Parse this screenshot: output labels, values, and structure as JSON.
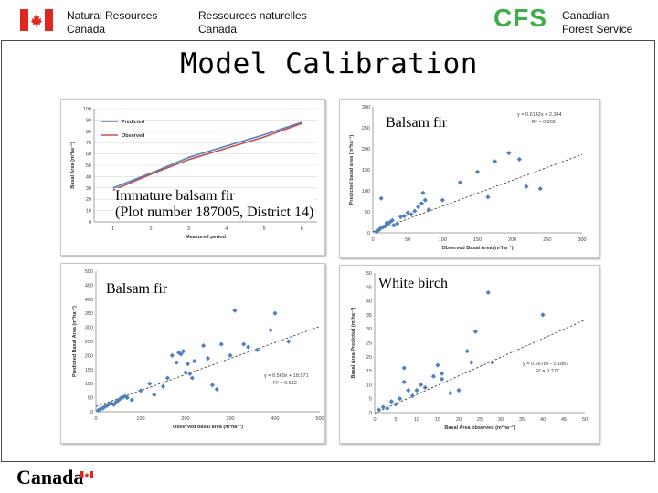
{
  "header": {
    "nrcan_en": [
      "Natural Resources",
      "Canada"
    ],
    "nrcan_fr": [
      "Ressources naturelles",
      "Canada"
    ],
    "cfs_abbrev": "CFS",
    "cfs_name": [
      "Canadian",
      "Forest Service"
    ],
    "accent_red": "#e0261f",
    "accent_green": "#3fae49"
  },
  "slide": {
    "title": "Model Calibration"
  },
  "footer": {
    "wordmark": "Canada"
  },
  "chart_data": [
    {
      "type": "line",
      "label": [
        "Immature balsam fir",
        "(Plot number 187005, District 14)"
      ],
      "xlabel": "Measured period",
      "ylabel": "Basal Area (m²ha⁻¹)",
      "x": [
        1,
        2,
        3,
        4,
        5,
        6
      ],
      "xlim": [
        0.5,
        6.4
      ],
      "ylim": [
        0,
        100
      ],
      "xticks": [
        1,
        2,
        3,
        4,
        5,
        6
      ],
      "yticks": [
        0,
        10,
        20,
        30,
        40,
        50,
        60,
        70,
        80,
        90,
        100
      ],
      "legend_position": "top-left",
      "series": [
        {
          "name": "Predicted",
          "color": "#4f81bd",
          "values": [
            30,
            43,
            57,
            67,
            77,
            88
          ]
        },
        {
          "name": "Observed",
          "color": "#c0504d",
          "values": [
            28,
            42,
            55,
            65,
            75,
            87
          ]
        }
      ]
    },
    {
      "type": "scatter",
      "label": "Balsam fir",
      "xlabel": "Observed Basal Area (m²ha⁻¹)",
      "ylabel": "Predicted basal area (m²ha⁻¹)",
      "equation": "y = 0.6142x + 2.344",
      "r2": "R² = 0.802",
      "xlim": [
        0,
        300
      ],
      "ylim": [
        0,
        300
      ],
      "xticks": [
        0,
        50,
        100,
        150,
        200,
        250,
        300
      ],
      "yticks": [
        0,
        50,
        100,
        150,
        200,
        250,
        300
      ],
      "trend": [
        0.6142,
        2.344
      ],
      "points": [
        [
          5,
          3
        ],
        [
          8,
          6
        ],
        [
          10,
          9
        ],
        [
          12,
          12
        ],
        [
          15,
          14
        ],
        [
          18,
          16
        ],
        [
          20,
          20
        ],
        [
          22,
          22
        ],
        [
          25,
          26
        ],
        [
          28,
          30
        ],
        [
          12,
          82
        ],
        [
          20,
          24
        ],
        [
          30,
          18
        ],
        [
          35,
          22
        ],
        [
          40,
          38
        ],
        [
          45,
          40
        ],
        [
          50,
          48
        ],
        [
          55,
          44
        ],
        [
          60,
          52
        ],
        [
          65,
          62
        ],
        [
          70,
          70
        ],
        [
          72,
          95
        ],
        [
          75,
          78
        ],
        [
          80,
          55
        ],
        [
          100,
          78
        ],
        [
          125,
          120
        ],
        [
          150,
          145
        ],
        [
          165,
          85
        ],
        [
          175,
          170
        ],
        [
          195,
          190
        ],
        [
          210,
          175
        ],
        [
          220,
          110
        ],
        [
          240,
          105
        ]
      ]
    },
    {
      "type": "scatter",
      "label": "Balsam fir",
      "xlabel": "Observed basal area (m²ha⁻¹)",
      "ylabel": "Predicted Basal Area (m²ha⁻¹)",
      "equation": "y = 0.569x + 18.571",
      "r2": "R² = 0.612",
      "xlim": [
        0,
        500
      ],
      "ylim": [
        0,
        500
      ],
      "xticks": [
        0,
        100,
        200,
        300,
        400,
        500
      ],
      "yticks": [
        0,
        50,
        100,
        150,
        200,
        250,
        300,
        350,
        400,
        450,
        500
      ],
      "trend": [
        0.569,
        18.571
      ],
      "points": [
        [
          5,
          5
        ],
        [
          10,
          10
        ],
        [
          15,
          12
        ],
        [
          20,
          18
        ],
        [
          25,
          22
        ],
        [
          30,
          28
        ],
        [
          35,
          30
        ],
        [
          40,
          25
        ],
        [
          45,
          35
        ],
        [
          50,
          40
        ],
        [
          55,
          48
        ],
        [
          60,
          52
        ],
        [
          65,
          55
        ],
        [
          70,
          50
        ],
        [
          80,
          42
        ],
        [
          100,
          75
        ],
        [
          120,
          100
        ],
        [
          130,
          60
        ],
        [
          150,
          90
        ],
        [
          160,
          120
        ],
        [
          170,
          200
        ],
        [
          180,
          175
        ],
        [
          185,
          210
        ],
        [
          190,
          205
        ],
        [
          195,
          215
        ],
        [
          200,
          140
        ],
        [
          205,
          170
        ],
        [
          210,
          135
        ],
        [
          215,
          120
        ],
        [
          220,
          180
        ],
        [
          240,
          235
        ],
        [
          250,
          190
        ],
        [
          260,
          95
        ],
        [
          270,
          80
        ],
        [
          280,
          240
        ],
        [
          300,
          200
        ],
        [
          310,
          360
        ],
        [
          330,
          240
        ],
        [
          340,
          230
        ],
        [
          360,
          220
        ],
        [
          390,
          290
        ],
        [
          400,
          350
        ],
        [
          430,
          250
        ]
      ]
    },
    {
      "type": "scatter",
      "label": "White birch",
      "xlabel": "Basal Area observed (m²ha⁻¹)",
      "ylabel": "Basal Area Predicted (m²ha⁻¹)",
      "equation": "y = 0.6678x - 0.1887",
      "r2": "R² = 0.777",
      "xlim": [
        0,
        50
      ],
      "ylim": [
        0,
        50
      ],
      "xticks": [
        0,
        5,
        10,
        15,
        20,
        25,
        30,
        35,
        40,
        45,
        50
      ],
      "yticks": [
        0,
        5,
        10,
        15,
        20,
        25,
        30,
        35,
        40,
        45,
        50
      ],
      "trend": [
        0.6678,
        -0.1887
      ],
      "points": [
        [
          1,
          1
        ],
        [
          2,
          2
        ],
        [
          3,
          1.5
        ],
        [
          4,
          4
        ],
        [
          5,
          3
        ],
        [
          6,
          5
        ],
        [
          7,
          16
        ],
        [
          7,
          11
        ],
        [
          8,
          8
        ],
        [
          9,
          6
        ],
        [
          10,
          8
        ],
        [
          11,
          10
        ],
        [
          12,
          9
        ],
        [
          14,
          13
        ],
        [
          15,
          17
        ],
        [
          16,
          12
        ],
        [
          16,
          14
        ],
        [
          18,
          7
        ],
        [
          20,
          8
        ],
        [
          22,
          22
        ],
        [
          23,
          18
        ],
        [
          24,
          29
        ],
        [
          27,
          43
        ],
        [
          28,
          18
        ],
        [
          40,
          35
        ]
      ]
    }
  ]
}
